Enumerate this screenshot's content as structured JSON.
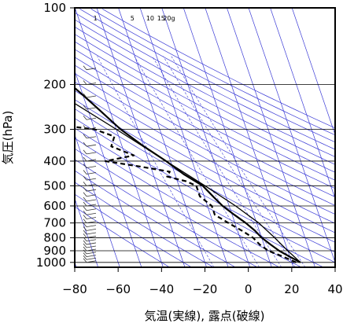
{
  "chart_data": {
    "type": "line",
    "chart_kind": "skew-T log-P diagram",
    "xlabel": "気温(実線), 露点(破線)",
    "ylabel": "気圧(hPa)",
    "xlim": [
      -80,
      40
    ],
    "ylim": [
      1040,
      100
    ],
    "y_scale": "log",
    "x_ticks": [
      -80,
      -60,
      -40,
      -20,
      0,
      20,
      40
    ],
    "x_tick_labels": [
      "−80",
      "−60",
      "−40",
      "−20",
      "0",
      "20",
      "40"
    ],
    "y_ticks": [
      100,
      200,
      300,
      400,
      500,
      600,
      700,
      800,
      900,
      1000
    ],
    "y_tick_labels": [
      "100",
      "200",
      "300",
      "400",
      "500",
      "600",
      "700",
      "800",
      "900",
      "1000"
    ],
    "mixing_ratio_labels": [
      "1",
      "5",
      "10",
      "15",
      "20g"
    ],
    "colors": {
      "temperature": "#000000",
      "dewpoint": "#000000",
      "parcel_path": "#cc0000",
      "adiabats": "#3b3bd6",
      "grid": "#000000"
    },
    "series": [
      {
        "key": "temperature",
        "line_style": "solid",
        "points": [
          [
            24,
            1000
          ],
          [
            20,
            950
          ],
          [
            16,
            900
          ],
          [
            13,
            850
          ],
          [
            10,
            800
          ],
          [
            8,
            750
          ],
          [
            5,
            700
          ],
          [
            1,
            650
          ],
          [
            -3,
            600
          ],
          [
            -6,
            550
          ],
          [
            -9,
            500
          ],
          [
            -16,
            450
          ],
          [
            -22,
            400
          ],
          [
            -30,
            350
          ],
          [
            -38,
            300
          ],
          [
            -45,
            250
          ],
          [
            -50,
            220
          ],
          [
            -54,
            200
          ],
          [
            -60,
            170
          ],
          [
            -63,
            150
          ],
          [
            -66,
            130
          ],
          [
            -68,
            115
          ],
          [
            -70,
            100
          ]
        ]
      },
      {
        "key": "dewpoint",
        "line_style": "dashed",
        "points": [
          [
            22,
            1000
          ],
          [
            17,
            950
          ],
          [
            11,
            900
          ],
          [
            8,
            850
          ],
          [
            6,
            800
          ],
          [
            2,
            750
          ],
          [
            -3,
            700
          ],
          [
            -8,
            650
          ],
          [
            -8,
            600
          ],
          [
            -12,
            550
          ],
          [
            -12,
            500
          ],
          [
            -16,
            480
          ],
          [
            -24,
            460
          ],
          [
            -22,
            440
          ],
          [
            -35,
            420
          ],
          [
            -50,
            400
          ],
          [
            -36,
            380
          ],
          [
            -45,
            350
          ],
          [
            -42,
            320
          ],
          [
            -50,
            300
          ],
          [
            -78,
            280
          ]
        ]
      },
      {
        "key": "parcel",
        "line_style": "solid",
        "points": [
          [
            24,
            1000
          ],
          [
            20,
            900
          ],
          [
            16,
            800
          ],
          [
            11,
            700
          ],
          [
            3,
            600
          ],
          [
            -8,
            500
          ],
          [
            -22,
            400
          ],
          [
            -40,
            300
          ],
          [
            -60,
            220
          ],
          [
            -71,
            180
          ],
          [
            -78,
            160
          ]
        ]
      }
    ]
  }
}
